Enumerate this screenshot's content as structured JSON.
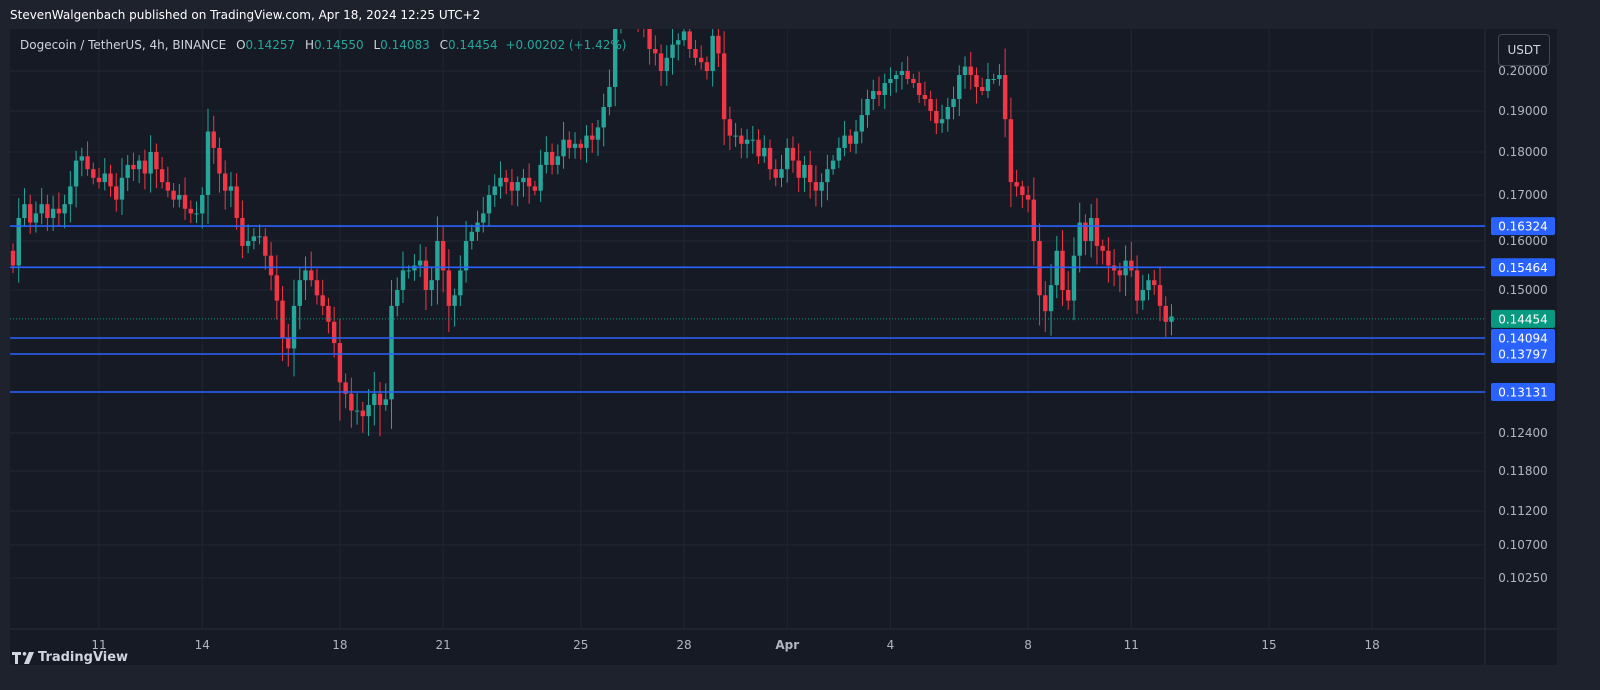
{
  "publisher": "StevenWalgenbach published on TradingView.com, Apr 18, 2024 12:25 UTC+2",
  "legend": {
    "symbol": "Dogecoin / TetherUS, 4h, BINANCE",
    "open_label": "O",
    "open": "0.14257",
    "high_label": "H",
    "high": "0.14550",
    "low_label": "L",
    "low": "0.14083",
    "close_label": "C",
    "close": "0.14454",
    "change": "+0.00202 (+1.42%)"
  },
  "currency": "USDT",
  "brand": "TradingView",
  "colors": {
    "up": "#26a69a",
    "down": "#f23645",
    "level": "#2962ff",
    "last": "#089981"
  },
  "chart_data": {
    "type": "candlestick",
    "symbol": "DOGE/USDT",
    "interval": "4h",
    "yaxis_ticks": [
      "0.20000",
      "0.19000",
      "0.18000",
      "0.17000",
      "0.16000",
      "0.15000",
      "0.12400",
      "0.11800",
      "0.11200",
      "0.10700",
      "0.10250"
    ],
    "yaxis_ticks_values": [
      0.2,
      0.19,
      0.18,
      0.17,
      0.16,
      0.15,
      0.124,
      0.118,
      0.112,
      0.107,
      0.1025
    ],
    "xaxis_ticks": [
      "11",
      "14",
      "18",
      "21",
      "25",
      "28",
      "Apr",
      "4",
      "8",
      "11",
      "15",
      "18"
    ],
    "xaxis_ticks_index": [
      15,
      33,
      57,
      75,
      99,
      117,
      135,
      153,
      177,
      195,
      219,
      237
    ],
    "price_labels": [
      {
        "label": "0.16324",
        "value": 0.16324,
        "kind": "level"
      },
      {
        "label": "0.15464",
        "value": 0.15464,
        "kind": "level"
      },
      {
        "label": "0.14454",
        "value": 0.14454,
        "kind": "last"
      },
      {
        "label": "0.14094",
        "value": 0.14094,
        "kind": "level"
      },
      {
        "label": "0.13797",
        "value": 0.13797,
        "kind": "level"
      },
      {
        "label": "0.13131",
        "value": 0.13131,
        "kind": "level"
      }
    ],
    "closes_approx": [
      0.155,
      0.165,
      0.168,
      0.164,
      0.166,
      0.168,
      0.165,
      0.167,
      0.166,
      0.168,
      0.172,
      0.178,
      0.179,
      0.176,
      0.174,
      0.173,
      0.175,
      0.172,
      0.169,
      0.174,
      0.177,
      0.176,
      0.178,
      0.175,
      0.18,
      0.176,
      0.173,
      0.171,
      0.169,
      0.17,
      0.167,
      0.166,
      0.166,
      0.17,
      0.185,
      0.181,
      0.175,
      0.171,
      0.172,
      0.165,
      0.159,
      0.16,
      0.161,
      0.161,
      0.157,
      0.153,
      0.148,
      0.141,
      0.139,
      0.147,
      0.152,
      0.154,
      0.152,
      0.149,
      0.147,
      0.144,
      0.14,
      0.133,
      0.131,
      0.128,
      0.128,
      0.127,
      0.129,
      0.131,
      0.129,
      0.13,
      0.147,
      0.15,
      0.154,
      0.154,
      0.155,
      0.156,
      0.15,
      0.152,
      0.16,
      0.154,
      0.147,
      0.149,
      0.154,
      0.16,
      0.162,
      0.164,
      0.166,
      0.17,
      0.172,
      0.174,
      0.173,
      0.171,
      0.173,
      0.174,
      0.172,
      0.171,
      0.177,
      0.18,
      0.177,
      0.179,
      0.183,
      0.181,
      0.182,
      0.181,
      0.184,
      0.183,
      0.186,
      0.191,
      0.196,
      0.211,
      0.216,
      0.214,
      0.212,
      0.211,
      0.21,
      0.205,
      0.204,
      0.2,
      0.203,
      0.206,
      0.207,
      0.209,
      0.205,
      0.203,
      0.202,
      0.2,
      0.208,
      0.204,
      0.188,
      0.184,
      0.184,
      0.182,
      0.183,
      0.183,
      0.179,
      0.181,
      0.176,
      0.174,
      0.176,
      0.181,
      0.178,
      0.174,
      0.177,
      0.173,
      0.171,
      0.173,
      0.176,
      0.178,
      0.181,
      0.184,
      0.182,
      0.185,
      0.189,
      0.193,
      0.195,
      0.194,
      0.197,
      0.198,
      0.199,
      0.2,
      0.198,
      0.197,
      0.194,
      0.193,
      0.19,
      0.187,
      0.188,
      0.191,
      0.193,
      0.199,
      0.201,
      0.199,
      0.196,
      0.195,
      0.198,
      0.198,
      0.199,
      0.188,
      0.173,
      0.172,
      0.17,
      0.169,
      0.16,
      0.149,
      0.146,
      0.151,
      0.158,
      0.15,
      0.148,
      0.157,
      0.164,
      0.16,
      0.165,
      0.159,
      0.158,
      0.155,
      0.154,
      0.153,
      0.156,
      0.154,
      0.148,
      0.15,
      0.152,
      0.151,
      0.147,
      0.144,
      0.145
    ]
  }
}
